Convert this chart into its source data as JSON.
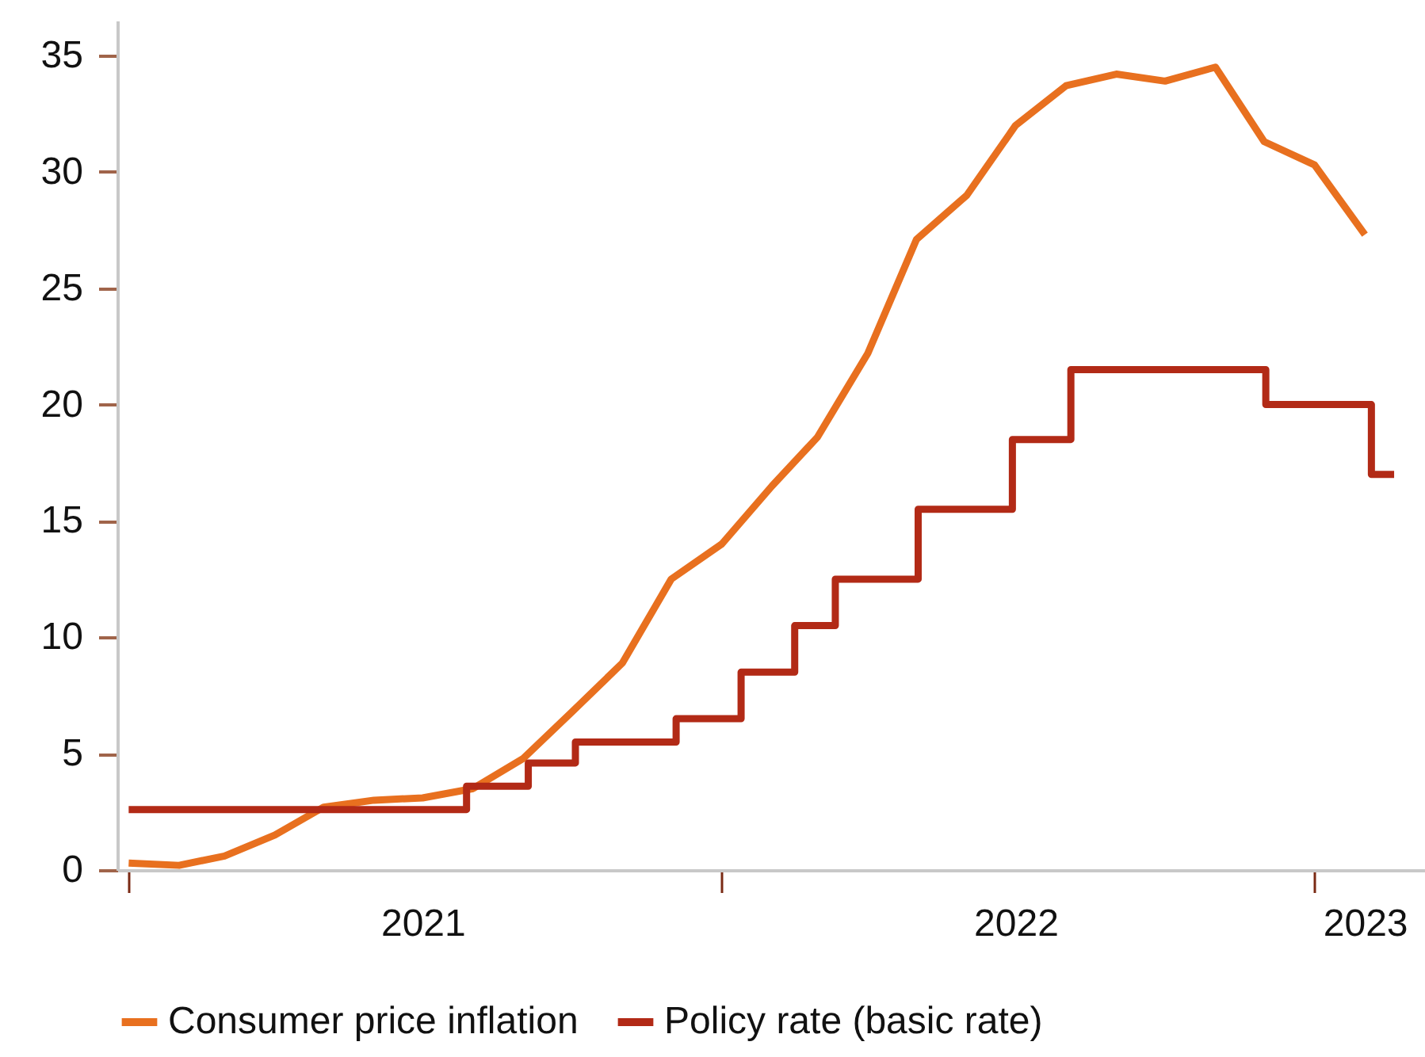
{
  "chart_data": {
    "type": "line",
    "x": [
      "2021-01",
      "2021-02",
      "2021-03",
      "2021-04",
      "2021-05",
      "2021-06",
      "2021-07",
      "2021-08",
      "2021-09",
      "2021-10",
      "2021-11",
      "2021-12",
      "2022-01",
      "2022-02",
      "2022-03",
      "2022-04",
      "2022-05",
      "2022-06",
      "2022-07",
      "2022-08",
      "2022-09",
      "2022-10",
      "2022-11",
      "2022-12",
      "2023-01",
      "2023-02"
    ],
    "series": [
      {
        "name": "Consumer price inflation",
        "color": "#e8701f",
        "values": [
          0.3,
          0.2,
          0.6,
          1.5,
          2.7,
          3.0,
          3.1,
          3.5,
          4.8,
          6.8,
          8.9,
          12.5,
          14.0,
          16.5,
          18.6,
          22.2,
          27.1,
          29.0,
          32.0,
          33.7,
          34.2,
          33.9,
          34.5,
          31.3,
          30.3,
          27.3
        ]
      },
      {
        "name": "Policy rate (basic rate)",
        "type": "step",
        "color": "#b22a16",
        "x": [
          "2021-01-01",
          "2021-07-28",
          "2021-09-04",
          "2021-10-03",
          "2021-12-04",
          "2022-01-13",
          "2022-02-15",
          "2022-03-12",
          "2022-05-02",
          "2022-06-29",
          "2022-08-04",
          "2022-12-02",
          "2023-02-05",
          "2023-02-19"
        ],
        "values": [
          2.6,
          3.6,
          4.6,
          5.5,
          6.5,
          8.5,
          10.5,
          12.5,
          15.5,
          18.5,
          21.5,
          20,
          17,
          17
        ]
      }
    ],
    "xlim": [
      "2020-12-25",
      "2023-03-10"
    ],
    "xticks": [
      {
        "value": "2021-01",
        "label": null
      },
      {
        "value": "2021-07",
        "label": "2021"
      },
      {
        "value": "2022-01",
        "label": null
      },
      {
        "value": "2022-07",
        "label": "2022"
      },
      {
        "value": "2023-01",
        "label": null
      },
      {
        "value": "2023-02",
        "label": "2023"
      }
    ],
    "ylim": [
      0,
      36.5
    ],
    "yticks": [
      0,
      5,
      10,
      15,
      20,
      25,
      30,
      35
    ],
    "legend": "bottom"
  }
}
